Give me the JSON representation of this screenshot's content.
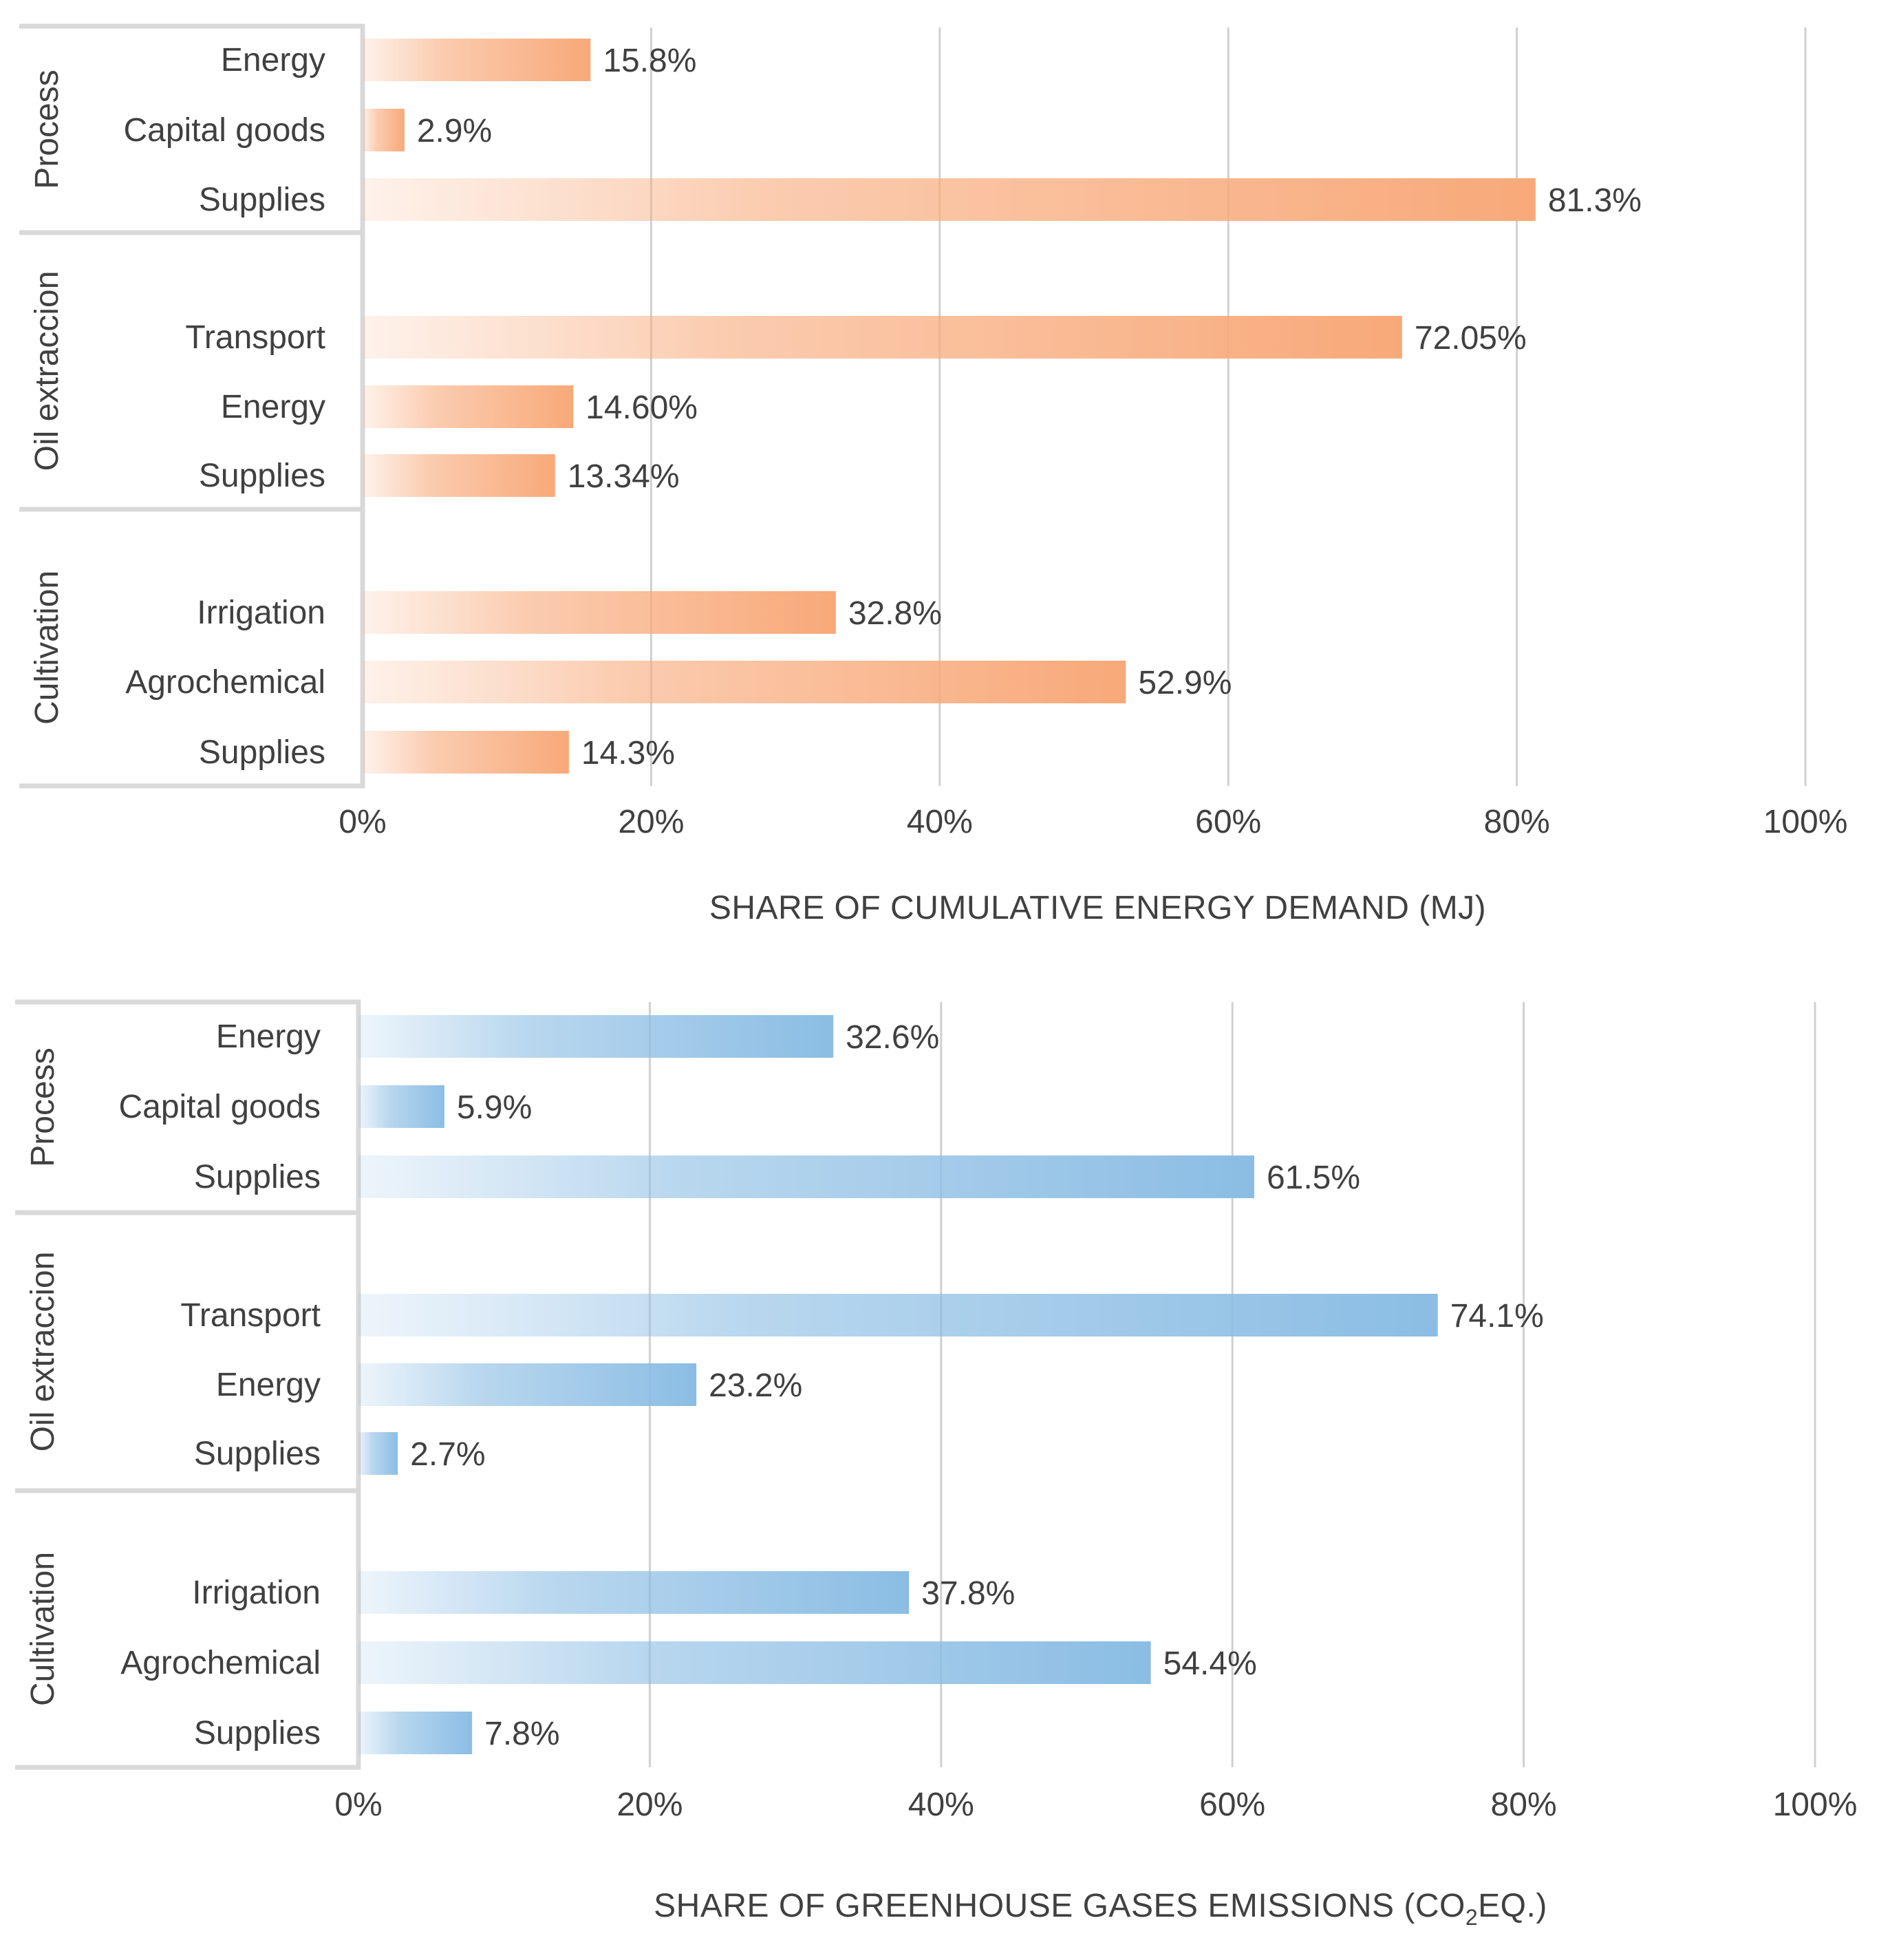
{
  "chart_data": [
    {
      "type": "bar",
      "orientation": "horizontal",
      "xlabel": "SHARE OF CUMULATIVE ENERGY DEMAND  (MJ)",
      "xlim": [
        0,
        100
      ],
      "xticks": [
        "0%",
        "20%",
        "40%",
        "60%",
        "80%",
        "100%"
      ],
      "grid": true,
      "bar_color": "#f8a979",
      "groups": [
        {
          "name": "Process",
          "items": [
            {
              "category": "Energy",
              "value": 15.8,
              "label": "15.8%"
            },
            {
              "category": "Capital goods",
              "value": 2.9,
              "label": "2.9%"
            },
            {
              "category": "Supplies",
              "value": 81.3,
              "label": "81.3%"
            }
          ]
        },
        {
          "name": "Oil extraccion",
          "items": [
            {
              "category": "Transport",
              "value": 72.05,
              "label": "72.05%"
            },
            {
              "category": "Energy",
              "value": 14.6,
              "label": "14.60%"
            },
            {
              "category": "Supplies",
              "value": 13.34,
              "label": "13.34%"
            }
          ]
        },
        {
          "name": "Cultivation",
          "items": [
            {
              "category": "Irrigation",
              "value": 32.8,
              "label": "32.8%"
            },
            {
              "category": "Agrochemical",
              "value": 52.9,
              "label": "52.9%"
            },
            {
              "category": "Supplies",
              "value": 14.3,
              "label": "14.3%"
            }
          ]
        }
      ]
    },
    {
      "type": "bar",
      "orientation": "horizontal",
      "xlabel": "SHARE OF GREENHOUSE GASES EMISSIONS (CO",
      "xlabel_subscript": "2",
      "xlabel_suffix": "EQ.)",
      "xlim": [
        0,
        100
      ],
      "xticks": [
        "0%",
        "20%",
        "40%",
        "60%",
        "80%",
        "100%"
      ],
      "grid": true,
      "bar_color": "#8bbde4",
      "groups": [
        {
          "name": "Process",
          "items": [
            {
              "category": "Energy",
              "value": 32.6,
              "label": "32.6%"
            },
            {
              "category": "Capital goods",
              "value": 5.9,
              "label": "5.9%"
            },
            {
              "category": "Supplies",
              "value": 61.5,
              "label": "61.5%"
            }
          ]
        },
        {
          "name": "Oil extraccion",
          "items": [
            {
              "category": "Transport",
              "value": 74.1,
              "label": "74.1%"
            },
            {
              "category": "Energy",
              "value": 23.2,
              "label": "23.2%"
            },
            {
              "category": "Supplies",
              "value": 2.7,
              "label": "2.7%"
            }
          ]
        },
        {
          "name": "Cultivation",
          "items": [
            {
              "category": "Irrigation",
              "value": 37.8,
              "label": "37.8%"
            },
            {
              "category": "Agrochemical",
              "value": 54.4,
              "label": "54.4%"
            },
            {
              "category": "Supplies",
              "value": 7.8,
              "label": "7.8%"
            }
          ]
        }
      ]
    }
  ]
}
